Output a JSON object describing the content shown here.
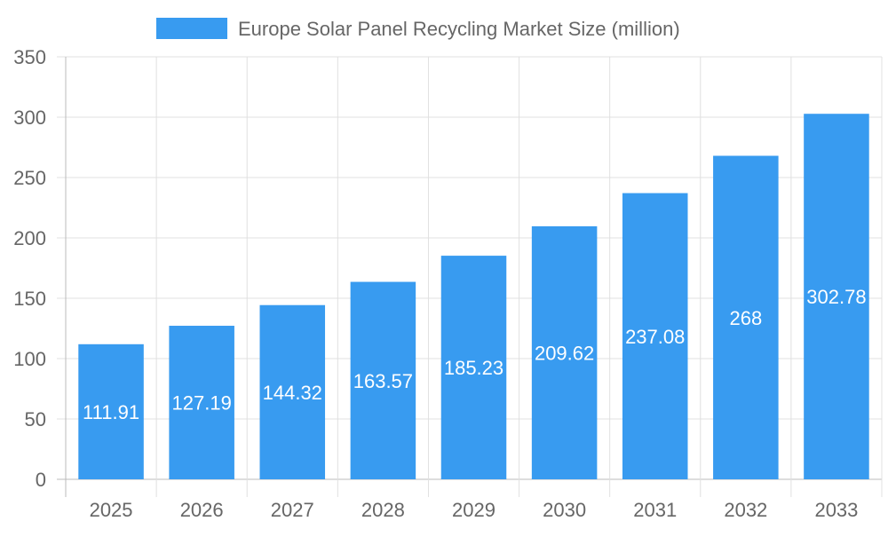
{
  "chart_data": {
    "type": "bar",
    "title": "",
    "xlabel": "",
    "ylabel": "",
    "categories": [
      "2025",
      "2026",
      "2027",
      "2028",
      "2029",
      "2030",
      "2031",
      "2032",
      "2033"
    ],
    "series": [
      {
        "name": "Europe Solar Panel Recycling Market Size (million)",
        "values": [
          111.91,
          127.19,
          144.32,
          163.57,
          185.23,
          209.62,
          237.08,
          268,
          302.78
        ]
      }
    ],
    "data_labels": [
      "111.91",
      "127.19",
      "144.32",
      "163.57",
      "185.23",
      "209.62",
      "237.08",
      "268",
      "302.78"
    ],
    "ylim": [
      0,
      350
    ],
    "yticks": [
      0,
      50,
      100,
      150,
      200,
      250,
      300,
      350
    ],
    "grid": true,
    "legend_placement": "top",
    "colors": {
      "bar": "#389BF0",
      "grid": "#E0E0E0",
      "text": "#666666",
      "label": "#FFFFFF"
    }
  }
}
